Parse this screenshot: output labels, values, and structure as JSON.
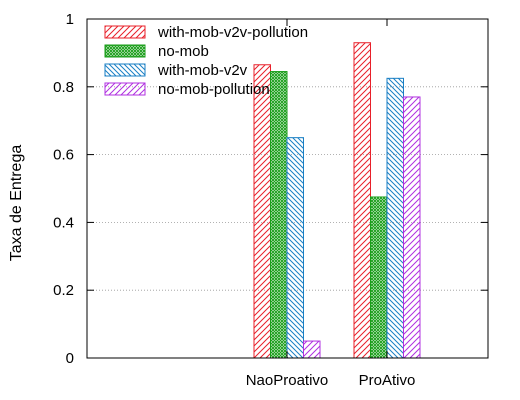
{
  "chart_data": {
    "type": "bar",
    "title": "",
    "xlabel": "",
    "ylabel": "Taxa de Entrega",
    "categories": [
      "NaoProativo",
      "ProAtivo"
    ],
    "ylim": [
      0,
      1
    ],
    "yticks": [
      "0",
      "0.2",
      "0.4",
      "0.6",
      "0.8",
      "1"
    ],
    "ytick_values": [
      0,
      0.2,
      0.4,
      0.6,
      0.8,
      1
    ],
    "grid": true,
    "legend_position": "top-left",
    "series": [
      {
        "name": "with-mob-v2v-pollution",
        "values": [
          0.865,
          0.93
        ],
        "color": "#e8202a",
        "pattern": "diag-up"
      },
      {
        "name": "no-mob",
        "values": [
          0.845,
          0.475
        ],
        "color": "#1a9e1a",
        "pattern": "crosshatch"
      },
      {
        "name": "with-mob-v2v",
        "values": [
          0.65,
          0.825
        ],
        "color": "#1a7fc4",
        "pattern": "diag-down"
      },
      {
        "name": "no-mob-pollution",
        "values": [
          0.05,
          0.77
        ],
        "color": "#b030e0",
        "pattern": "diag-up"
      }
    ]
  }
}
